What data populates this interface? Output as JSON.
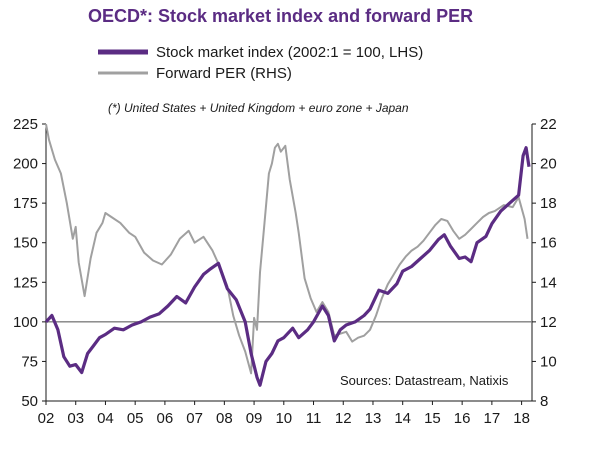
{
  "chart_data": {
    "type": "line",
    "title": "OECD*: Stock market index and forward PER",
    "subtitle": "(*) United States + United Kingdom + euro zone + Japan",
    "source": "Sources: Datastream, Natixis",
    "grid": false,
    "legend_position": "top",
    "colors": {
      "title": "#5b2c83",
      "stock": "#5b2c83",
      "per": "#a0a0a0",
      "reference": "#7f7f7f"
    },
    "reference_line": {
      "axis": "left",
      "value": 100
    },
    "x_axis": {
      "min": 2002.0,
      "max": 2018.35,
      "tick_values": [
        2002,
        2003,
        2004,
        2005,
        2006,
        2007,
        2008,
        2009,
        2010,
        2011,
        2012,
        2013,
        2014,
        2015,
        2016,
        2017,
        2018
      ],
      "tick_labels": [
        "02",
        "03",
        "04",
        "05",
        "06",
        "07",
        "08",
        "09",
        "10",
        "11",
        "12",
        "13",
        "14",
        "15",
        "16",
        "17",
        "18"
      ]
    },
    "y_left": {
      "min": 50,
      "max": 225,
      "ticks": [
        "50",
        "75",
        "100",
        "125",
        "150",
        "175",
        "200",
        "225"
      ]
    },
    "y_right": {
      "min": 8,
      "max": 22,
      "ticks": [
        "8",
        "10",
        "12",
        "14",
        "16",
        "18",
        "20",
        "22"
      ]
    },
    "series": [
      {
        "name": "Stock market index (2002:1 = 100, LHS)",
        "axis": "left",
        "x": [
          2002.0,
          2002.2,
          2002.4,
          2002.6,
          2002.8,
          2003.0,
          2003.2,
          2003.4,
          2003.6,
          2003.8,
          2004.0,
          2004.3,
          2004.6,
          2004.9,
          2005.2,
          2005.5,
          2005.8,
          2006.1,
          2006.4,
          2006.7,
          2007.0,
          2007.3,
          2007.5,
          2007.8,
          2008.1,
          2008.4,
          2008.7,
          2008.9,
          2009.1,
          2009.2,
          2009.4,
          2009.6,
          2009.8,
          2010.0,
          2010.3,
          2010.5,
          2010.8,
          2011.0,
          2011.3,
          2011.5,
          2011.7,
          2011.9,
          2012.1,
          2012.4,
          2012.7,
          2012.9,
          2013.2,
          2013.5,
          2013.8,
          2014.0,
          2014.3,
          2014.6,
          2014.9,
          2015.2,
          2015.4,
          2015.6,
          2015.9,
          2016.1,
          2016.3,
          2016.5,
          2016.8,
          2017.0,
          2017.3,
          2017.6,
          2017.9,
          2018.05,
          2018.15,
          2018.25
        ],
        "y": [
          100,
          104,
          95,
          78,
          72,
          73,
          68,
          80,
          85,
          90,
          92,
          96,
          95,
          98,
          100,
          103,
          105,
          110,
          116,
          112,
          122,
          130,
          133,
          137,
          121,
          114,
          100,
          80,
          65,
          60,
          75,
          80,
          88,
          90,
          96,
          90,
          95,
          100,
          110,
          104,
          88,
          95,
          98,
          100,
          104,
          108,
          120,
          118,
          124,
          132,
          135,
          140,
          145,
          152,
          155,
          148,
          140,
          141,
          138,
          150,
          154,
          162,
          170,
          175,
          180,
          205,
          210,
          198
        ]
      },
      {
        "name": "Forward PER (RHS)",
        "axis": "right",
        "x": [
          2002.0,
          2002.1,
          2002.3,
          2002.5,
          2002.7,
          2002.9,
          2003.0,
          2003.1,
          2003.3,
          2003.5,
          2003.7,
          2003.9,
          2004.0,
          2004.2,
          2004.5,
          2004.8,
          2005.0,
          2005.3,
          2005.6,
          2005.9,
          2006.2,
          2006.5,
          2006.8,
          2007.0,
          2007.3,
          2007.6,
          2007.9,
          2008.1,
          2008.3,
          2008.5,
          2008.7,
          2008.9,
          2009.0,
          2009.1,
          2009.2,
          2009.35,
          2009.5,
          2009.6,
          2009.7,
          2009.8,
          2009.9,
          2010.05,
          2010.2,
          2010.4,
          2010.5,
          2010.7,
          2010.9,
          2011.1,
          2011.3,
          2011.5,
          2011.7,
          2011.9,
          2012.1,
          2012.3,
          2012.5,
          2012.7,
          2012.9,
          2013.1,
          2013.3,
          2013.5,
          2013.7,
          2013.9,
          2014.1,
          2014.3,
          2014.5,
          2014.7,
          2014.9,
          2015.1,
          2015.3,
          2015.5,
          2015.7,
          2015.9,
          2016.1,
          2016.3,
          2016.5,
          2016.7,
          2016.9,
          2017.1,
          2017.4,
          2017.7,
          2017.9,
          2018.1,
          2018.2
        ],
        "y": [
          22.0,
          21.2,
          20.2,
          19.5,
          18.0,
          16.2,
          16.8,
          15.0,
          13.3,
          15.2,
          16.5,
          17.0,
          17.5,
          17.3,
          17.0,
          16.5,
          16.3,
          15.5,
          15.1,
          14.9,
          15.4,
          16.2,
          16.6,
          16.0,
          16.3,
          15.6,
          14.6,
          13.8,
          12.3,
          11.3,
          10.5,
          9.4,
          12.2,
          11.6,
          14.5,
          17.0,
          19.5,
          20.0,
          20.8,
          21.0,
          20.6,
          20.9,
          19.2,
          17.5,
          16.5,
          14.2,
          13.2,
          12.5,
          13.0,
          12.5,
          11.3,
          11.4,
          11.5,
          11.0,
          11.2,
          11.3,
          11.6,
          12.3,
          13.2,
          13.9,
          14.4,
          14.9,
          15.3,
          15.6,
          15.8,
          16.1,
          16.5,
          16.9,
          17.2,
          17.1,
          16.6,
          16.2,
          16.4,
          16.7,
          17.0,
          17.3,
          17.5,
          17.6,
          17.9,
          17.8,
          18.3,
          17.2,
          16.2
        ]
      }
    ]
  }
}
